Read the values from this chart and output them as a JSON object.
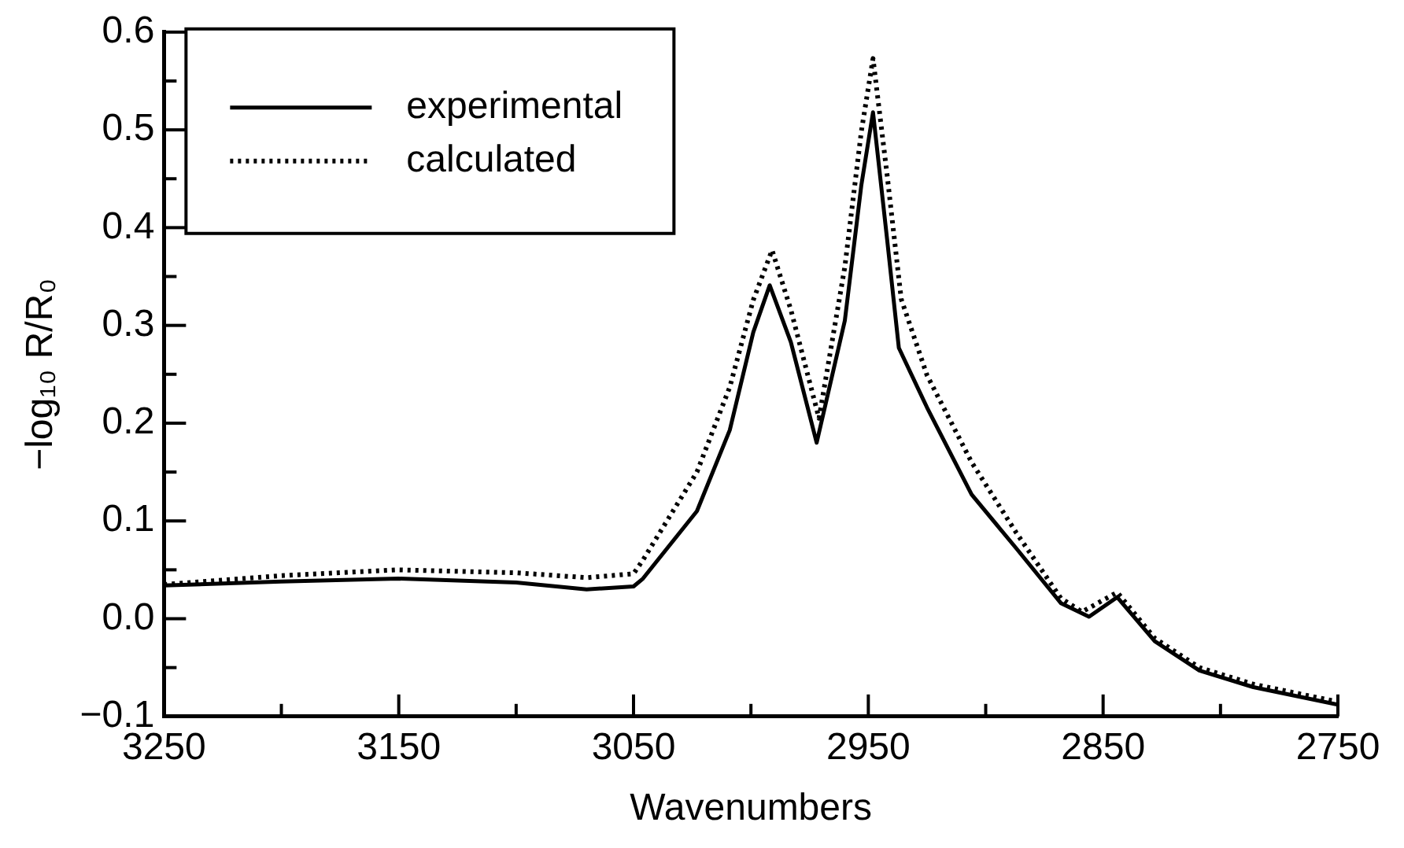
{
  "chart_data": {
    "type": "line",
    "xlabel": "Wavenumbers",
    "ylabel": "−log₁₀ R/R₀",
    "xlim": [
      3250,
      2750
    ],
    "xticks": [
      3250,
      {
        "value": 3200,
        "label": null
      },
      3150,
      {
        "value": 3100,
        "label": null
      },
      3050,
      {
        "value": 3000,
        "label": null
      },
      2950,
      {
        "value": 2900,
        "label": null
      },
      2850,
      {
        "value": 2800,
        "label": null
      },
      2750
    ],
    "ylim": [
      -0.1,
      0.6
    ],
    "yticks": [
      {
        "value": -0.1,
        "label": "−0.1"
      },
      {
        "value": -0.05,
        "label": null
      },
      {
        "value": 0,
        "label": "0.0"
      },
      {
        "value": 0.05,
        "label": null
      },
      0.1,
      {
        "value": 0.15,
        "label": null
      },
      0.2,
      {
        "value": 0.25,
        "label": null
      },
      0.3,
      {
        "value": 0.35,
        "label": null
      },
      0.4,
      {
        "value": 0.45,
        "label": null
      },
      0.5,
      {
        "value": 0.55,
        "label": null
      },
      0.6
    ],
    "grid": false,
    "legend": "top left",
    "marker": "none",
    "series": [
      {
        "name": "experimental",
        "color": "#000000",
        "line_style": "solid",
        "x": [
          3250,
          3200,
          3150,
          3100,
          3070,
          3050,
          3046,
          3023,
          3009,
          2999,
          2992,
          2983,
          2972,
          2960,
          2953,
          2948,
          2942,
          2937,
          2925,
          2906,
          2887,
          2868,
          2856,
          2844,
          2828,
          2809,
          2786,
          2750
        ],
        "values": [
          0.034,
          0.038,
          0.041,
          0.037,
          0.03,
          0.033,
          0.041,
          0.11,
          0.193,
          0.293,
          0.341,
          0.283,
          0.18,
          0.305,
          0.443,
          0.518,
          0.388,
          0.277,
          0.216,
          0.127,
          0.072,
          0.016,
          0.002,
          0.022,
          -0.023,
          -0.053,
          -0.07,
          -0.088
        ]
      },
      {
        "name": "calculated",
        "color": "#000000",
        "line_style": "dotted",
        "x": [
          3250,
          3200,
          3150,
          3100,
          3070,
          3050,
          3046,
          3023,
          3009,
          2999,
          2991,
          2983,
          2971,
          2960,
          2953,
          2948,
          2942,
          2936,
          2925,
          2906,
          2887,
          2868,
          2859,
          2844,
          2828,
          2809,
          2786,
          2750
        ],
        "values": [
          0.035,
          0.044,
          0.05,
          0.047,
          0.042,
          0.046,
          0.06,
          0.15,
          0.237,
          0.326,
          0.377,
          0.316,
          0.205,
          0.36,
          0.498,
          0.573,
          0.454,
          0.327,
          0.249,
          0.16,
          0.088,
          0.021,
          0.007,
          0.027,
          -0.02,
          -0.05,
          -0.067,
          -0.085
        ]
      }
    ]
  }
}
